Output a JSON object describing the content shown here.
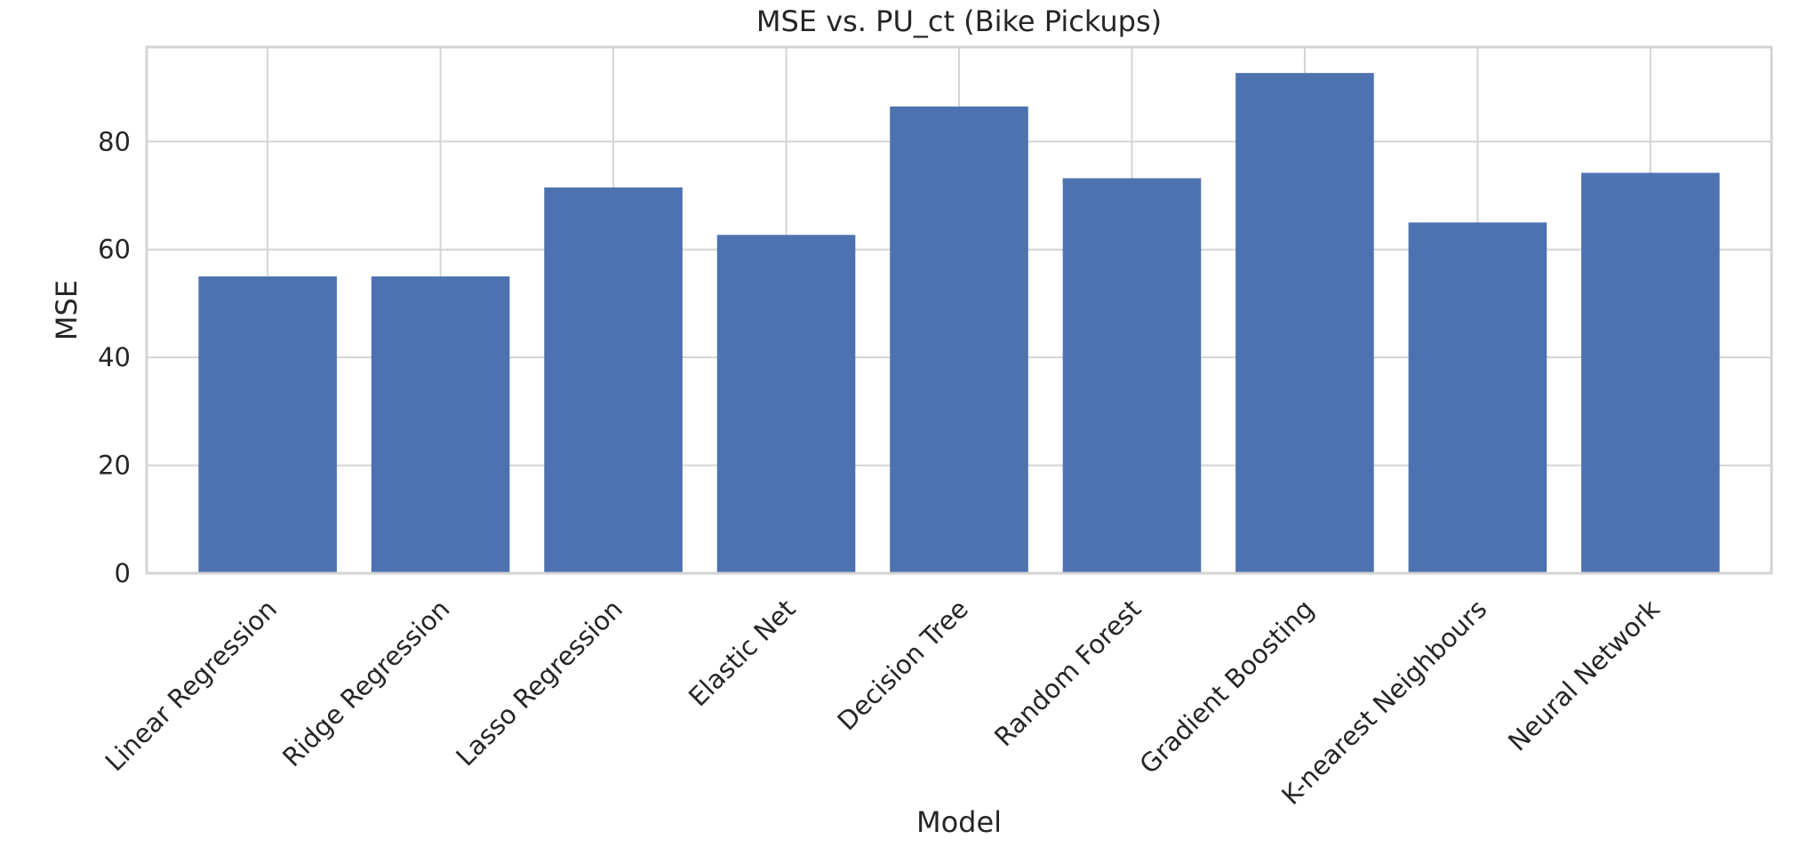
{
  "chart_data": {
    "type": "bar",
    "title": "MSE vs. PU_ct (Bike Pickups)",
    "xlabel": "Model",
    "ylabel": "MSE",
    "categories": [
      "Linear Regression",
      "Ridge Regression",
      "Lasso Regression",
      "Elastic Net",
      "Decision Tree",
      "Random Forest",
      "Gradient Boosting",
      "K-nearest Neighbours",
      "Neural Network"
    ],
    "values": [
      55.0,
      55.0,
      71.5,
      62.7,
      86.5,
      73.2,
      92.7,
      65.0,
      74.2
    ],
    "ylim": [
      0,
      97.5
    ],
    "yticks": [
      0,
      20,
      40,
      60,
      80
    ],
    "grid": true,
    "bar_color": "#4c72b0",
    "grid_color": "#d4d4d4"
  }
}
